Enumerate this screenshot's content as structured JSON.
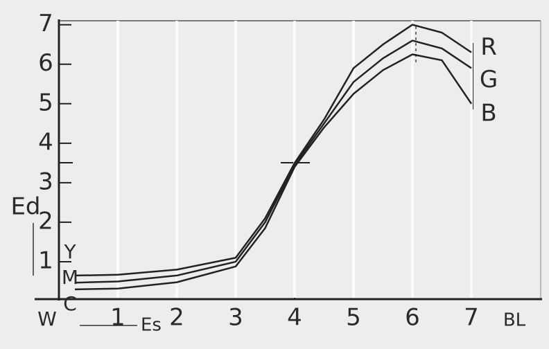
{
  "chart_data": {
    "type": "line",
    "y_label": "Ed",
    "x_label": "Es",
    "origin_label": "W",
    "x_end_label": "BL",
    "xlim": [
      0,
      8.2
    ],
    "ylim": [
      0,
      7.1
    ],
    "xticks": [
      1,
      2,
      3,
      4,
      5,
      6,
      7
    ],
    "yticks": [
      1,
      2,
      3,
      4,
      5,
      6,
      7
    ],
    "x": [
      0.27,
      1,
      2,
      3,
      3.5,
      4,
      4.5,
      5,
      5.5,
      6,
      6.5,
      7
    ],
    "series": [
      {
        "name": "R",
        "start_label": "Y",
        "color": "#222222",
        "values": [
          0.65,
          0.67,
          0.8,
          1.1,
          2.1,
          3.5,
          4.6,
          5.9,
          6.5,
          7.0,
          6.8,
          6.3
        ]
      },
      {
        "name": "G",
        "start_label": "M",
        "color": "#222222",
        "values": [
          0.47,
          0.5,
          0.65,
          1.0,
          2.0,
          3.45,
          4.5,
          5.55,
          6.15,
          6.6,
          6.4,
          5.9
        ]
      },
      {
        "name": "B",
        "start_label": "C",
        "color": "#222222",
        "values": [
          0.3,
          0.32,
          0.48,
          0.88,
          1.85,
          3.4,
          4.4,
          5.25,
          5.85,
          6.25,
          6.1,
          5.0
        ]
      }
    ]
  }
}
